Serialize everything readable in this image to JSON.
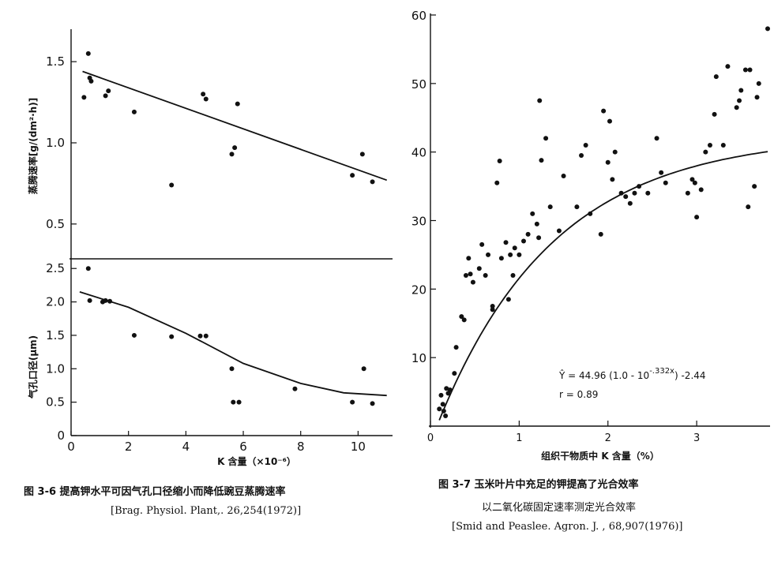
{
  "chart_data": [
    {
      "id": "fig36_top",
      "type": "scatter",
      "ylabel": "蒸腾速率[g/(dm²·h)]",
      "xlim": [
        0,
        11.2
      ],
      "ylim": [
        0.3,
        1.7
      ],
      "yticks": [
        "0.5",
        "1.0",
        "1.5"
      ],
      "ytick_values": [
        0.5,
        1.0,
        1.5
      ],
      "points": [
        [
          0.45,
          1.28
        ],
        [
          0.6,
          1.55
        ],
        [
          0.65,
          1.4
        ],
        [
          0.7,
          1.38
        ],
        [
          1.2,
          1.29
        ],
        [
          1.3,
          1.32
        ],
        [
          2.2,
          1.19
        ],
        [
          3.5,
          0.74
        ],
        [
          4.6,
          1.3
        ],
        [
          4.7,
          1.27
        ],
        [
          5.6,
          0.93
        ],
        [
          5.7,
          0.97
        ],
        [
          5.8,
          1.24
        ],
        [
          9.8,
          0.8
        ],
        [
          10.15,
          0.93
        ],
        [
          10.5,
          0.76
        ]
      ],
      "fit_line": [
        [
          0.4,
          1.44
        ],
        [
          11.0,
          0.77
        ]
      ]
    },
    {
      "id": "fig36_bottom",
      "type": "scatter",
      "xlabel": "K 含量（×10⁻⁶）",
      "ylabel": "气孔口径(μm)",
      "xlim": [
        0,
        11.2
      ],
      "ylim": [
        0,
        2.55
      ],
      "xticks": [
        "0",
        "2",
        "4",
        "6",
        "8",
        "10"
      ],
      "xtick_values": [
        0,
        2,
        4,
        6,
        8,
        10
      ],
      "yticks": [
        "0",
        "0.5",
        "1.0",
        "1.5",
        "2.0",
        "2.5"
      ],
      "ytick_values": [
        0,
        0.5,
        1.0,
        1.5,
        2.0,
        2.5
      ],
      "points": [
        [
          0.6,
          2.5
        ],
        [
          0.65,
          2.02
        ],
        [
          1.1,
          2.0
        ],
        [
          1.2,
          2.02
        ],
        [
          1.35,
          2.01
        ],
        [
          2.2,
          1.5
        ],
        [
          3.5,
          1.48
        ],
        [
          4.5,
          1.49
        ],
        [
          4.7,
          1.49
        ],
        [
          5.6,
          1.0
        ],
        [
          5.65,
          0.5
        ],
        [
          5.85,
          0.5
        ],
        [
          7.8,
          0.7
        ],
        [
          9.8,
          0.5
        ],
        [
          10.2,
          1.0
        ],
        [
          10.5,
          0.48
        ]
      ],
      "fit_curve": [
        [
          0.3,
          2.15
        ],
        [
          2,
          1.92
        ],
        [
          4,
          1.53
        ],
        [
          6,
          1.08
        ],
        [
          8,
          0.78
        ],
        [
          9.5,
          0.64
        ],
        [
          11.0,
          0.6
        ]
      ]
    },
    {
      "id": "fig37",
      "type": "scatter",
      "xlabel": "组织干物质中 K 含量（%）",
      "xlim": [
        0,
        3.8
      ],
      "ylim": [
        0,
        60
      ],
      "xticks": [
        "0",
        "1",
        "2",
        "3"
      ],
      "xtick_values": [
        0,
        1,
        2,
        3
      ],
      "yticks": [
        "10",
        "20",
        "30",
        "40",
        "50",
        "60"
      ],
      "ytick_values": [
        10,
        20,
        30,
        40,
        50,
        60
      ],
      "points": [
        [
          0.1,
          2.5
        ],
        [
          0.12,
          4.5
        ],
        [
          0.14,
          3.2
        ],
        [
          0.15,
          2.2
        ],
        [
          0.17,
          1.5
        ],
        [
          0.18,
          5.5
        ],
        [
          0.2,
          4.8
        ],
        [
          0.22,
          5.3
        ],
        [
          0.27,
          7.7
        ],
        [
          0.29,
          11.5
        ],
        [
          0.35,
          16
        ],
        [
          0.38,
          15.5
        ],
        [
          0.4,
          22
        ],
        [
          0.43,
          24.5
        ],
        [
          0.45,
          22.2
        ],
        [
          0.48,
          21
        ],
        [
          0.55,
          23
        ],
        [
          0.58,
          26.5
        ],
        [
          0.62,
          22
        ],
        [
          0.65,
          25
        ],
        [
          0.7,
          17.5
        ],
        [
          0.7,
          17
        ],
        [
          0.75,
          35.5
        ],
        [
          0.78,
          38.7
        ],
        [
          0.8,
          24.5
        ],
        [
          0.85,
          26.8
        ],
        [
          0.88,
          18.5
        ],
        [
          0.9,
          25
        ],
        [
          0.93,
          22
        ],
        [
          0.95,
          26
        ],
        [
          1.0,
          25
        ],
        [
          1.05,
          27
        ],
        [
          1.1,
          28
        ],
        [
          1.15,
          31
        ],
        [
          1.2,
          29.5
        ],
        [
          1.22,
          27.5
        ],
        [
          1.23,
          47.5
        ],
        [
          1.25,
          38.8
        ],
        [
          1.3,
          42
        ],
        [
          1.35,
          32
        ],
        [
          1.45,
          28.5
        ],
        [
          1.5,
          36.5
        ],
        [
          1.65,
          32
        ],
        [
          1.7,
          39.5
        ],
        [
          1.75,
          41
        ],
        [
          1.8,
          31
        ],
        [
          1.92,
          28
        ],
        [
          1.95,
          46
        ],
        [
          2.0,
          38.5
        ],
        [
          2.02,
          44.5
        ],
        [
          2.05,
          36
        ],
        [
          2.08,
          40
        ],
        [
          2.15,
          34
        ],
        [
          2.2,
          33.5
        ],
        [
          2.25,
          32.5
        ],
        [
          2.3,
          34
        ],
        [
          2.35,
          35
        ],
        [
          2.45,
          34
        ],
        [
          2.55,
          42
        ],
        [
          2.6,
          37
        ],
        [
          2.65,
          35.5
        ],
        [
          2.9,
          34
        ],
        [
          2.95,
          36
        ],
        [
          2.98,
          35.5
        ],
        [
          3.0,
          30.5
        ],
        [
          3.05,
          34.5
        ],
        [
          3.1,
          40
        ],
        [
          3.15,
          41
        ],
        [
          3.2,
          45.5
        ],
        [
          3.22,
          51
        ],
        [
          3.3,
          41
        ],
        [
          3.35,
          52.5
        ],
        [
          3.45,
          46.5
        ],
        [
          3.48,
          47.5
        ],
        [
          3.5,
          49
        ],
        [
          3.55,
          52
        ],
        [
          3.58,
          32
        ],
        [
          3.6,
          52
        ],
        [
          3.65,
          35
        ],
        [
          3.68,
          48
        ],
        [
          3.7,
          50
        ],
        [
          3.8,
          58
        ]
      ],
      "fit": {
        "a": 44.96,
        "k": 0.332,
        "c": -2.44,
        "x_from": 0.1,
        "x_to": 3.8
      },
      "equation_lines": [
        "Ŷ = 44.96 (1.0 - 10",
        "-.332x",
        ") -2.44",
        "r  = 0.89"
      ]
    }
  ],
  "captions": {
    "fig36_title": "图 3-6   提高钾水平可因气孔口径缩小而降低豌豆蒸腾速率",
    "fig36_ref": "[Brag.  Physiol.  Plant,. 26,254(1972)]",
    "fig37_title": "图 3-7    玉米叶片中充足的钾提高了光合效率",
    "fig37_subtitle": "以二氧化碳固定速率测定光合效率",
    "fig37_ref": "[Smid and Peaslee.  Agron. J. , 68,907(1976)]"
  }
}
